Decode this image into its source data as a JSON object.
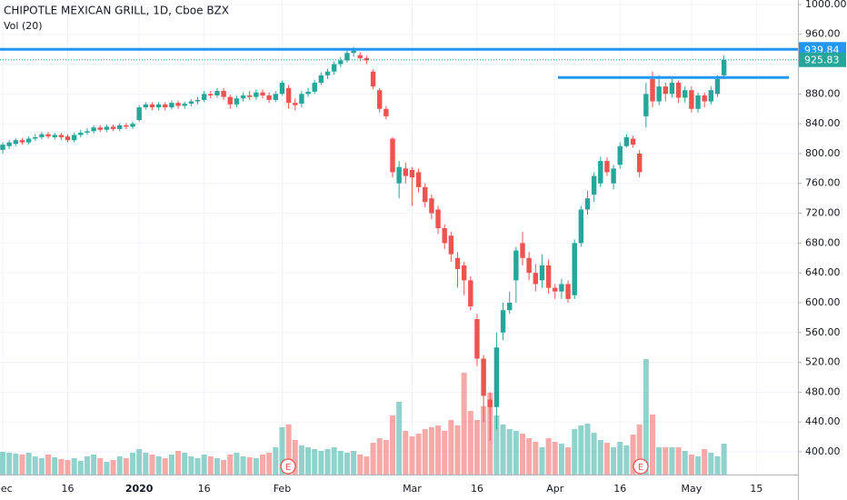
{
  "chart_data": {
    "type": "candlestick",
    "title": "CHIPOTLE MEXICAN GRILL, 1D, Cboe BZX",
    "subtitle": "Vol (20)",
    "categories": [
      "Dec",
      null,
      null,
      null,
      null,
      null,
      null,
      null,
      null,
      null,
      "16",
      null,
      null,
      null,
      null,
      null,
      null,
      null,
      null,
      null,
      null,
      "2020",
      null,
      null,
      null,
      null,
      null,
      null,
      null,
      null,
      null,
      "16",
      null,
      null,
      null,
      null,
      null,
      null,
      null,
      null,
      null,
      null,
      null,
      "Feb",
      null,
      null,
      null,
      null,
      null,
      null,
      null,
      null,
      null,
      null,
      null,
      null,
      null,
      null,
      null,
      null,
      null,
      null,
      null,
      "Mar",
      null,
      null,
      null,
      null,
      null,
      null,
      null,
      null,
      null,
      "16",
      null,
      null,
      null,
      null,
      null,
      null,
      null,
      null,
      null,
      null,
      null,
      "Apr",
      null,
      null,
      null,
      null,
      null,
      null,
      null,
      null,
      null,
      "16",
      null,
      null,
      null,
      null,
      null,
      null,
      null,
      null,
      null,
      null,
      "May",
      null,
      null,
      null,
      null,
      null,
      null,
      null,
      null,
      null,
      "15"
    ],
    "open": [
      805,
      810,
      813,
      818,
      815,
      820,
      822,
      826,
      822,
      825,
      823,
      818,
      825,
      828,
      830,
      835,
      832,
      836,
      833,
      838,
      836,
      845,
      862,
      866,
      862,
      866,
      862,
      868,
      864,
      867,
      870,
      872,
      880,
      878,
      884,
      876,
      866,
      874,
      878,
      876,
      882,
      878,
      872,
      880,
      888,
      868,
      867,
      880,
      883,
      895,
      905,
      910,
      920,
      925,
      935,
      932,
      928,
      910,
      885,
      860,
      820,
      760,
      780,
      778,
      775,
      755,
      740,
      725,
      700,
      690,
      660,
      650,
      630,
      578,
      525,
      470,
      460,
      560,
      590,
      630,
      680,
      660,
      640,
      630,
      650,
      620,
      615,
      625,
      610,
      680,
      725,
      745,
      760,
      790,
      760,
      785,
      810,
      820,
      800,
      850,
      900,
      870,
      890,
      880,
      895,
      875,
      885,
      860,
      878,
      870,
      880,
      905,
      null,
      null,
      null,
      null,
      null
    ],
    "high": [
      815,
      818,
      821,
      821,
      823,
      826,
      829,
      829,
      828,
      828,
      826,
      828,
      832,
      834,
      838,
      838,
      839,
      839,
      841,
      841,
      843,
      865,
      869,
      869,
      869,
      869,
      871,
      871,
      870,
      873,
      876,
      884,
      884,
      888,
      888,
      879,
      878,
      882,
      884,
      886,
      886,
      882,
      884,
      898,
      892,
      874,
      884,
      888,
      899,
      909,
      914,
      924,
      929,
      938,
      943,
      936,
      931,
      913,
      888,
      864,
      822,
      790,
      788,
      782,
      780,
      760,
      745,
      730,
      705,
      695,
      668,
      655,
      635,
      585,
      530,
      480,
      560,
      600,
      615,
      675,
      695,
      668,
      652,
      665,
      658,
      625,
      632,
      630,
      685,
      730,
      750,
      775,
      796,
      795,
      785,
      815,
      826,
      824,
      805,
      895,
      910,
      905,
      895,
      900,
      898,
      890,
      890,
      882,
      882,
      890,
      905,
      932,
      null,
      null,
      null,
      null,
      null
    ],
    "low": [
      800,
      806,
      810,
      812,
      812,
      817,
      819,
      820,
      819,
      818,
      815,
      815,
      822,
      825,
      827,
      829,
      829,
      830,
      830,
      833,
      833,
      843,
      859,
      858,
      858,
      858,
      859,
      860,
      860,
      863,
      866,
      869,
      874,
      875,
      872,
      860,
      862,
      870,
      872,
      872,
      874,
      868,
      869,
      878,
      860,
      858,
      862,
      876,
      880,
      892,
      900,
      906,
      916,
      922,
      930,
      924,
      920,
      886,
      855,
      846,
      768,
      740,
      760,
      730,
      748,
      728,
      712,
      692,
      672,
      655,
      620,
      610,
      590,
      515,
      440,
      415,
      430,
      550,
      585,
      600,
      650,
      630,
      615,
      620,
      612,
      605,
      605,
      600,
      605,
      675,
      718,
      735,
      755,
      770,
      752,
      780,
      808,
      808,
      768,
      835,
      862,
      865,
      870,
      875,
      868,
      868,
      855,
      855,
      862,
      866,
      876,
      900,
      null,
      null,
      null,
      null,
      null
    ],
    "close": [
      812,
      815,
      818,
      815,
      820,
      822,
      826,
      823,
      825,
      822,
      818,
      825,
      828,
      830,
      835,
      832,
      836,
      833,
      838,
      836,
      840,
      862,
      866,
      862,
      866,
      862,
      868,
      864,
      867,
      870,
      872,
      880,
      878,
      884,
      876,
      866,
      874,
      878,
      876,
      882,
      878,
      872,
      880,
      895,
      868,
      865,
      880,
      883,
      895,
      905,
      910,
      920,
      925,
      935,
      938,
      928,
      925,
      890,
      860,
      850,
      775,
      782,
      770,
      768,
      755,
      735,
      720,
      700,
      680,
      665,
      645,
      630,
      595,
      525,
      475,
      460,
      540,
      590,
      600,
      670,
      660,
      640,
      625,
      650,
      620,
      615,
      625,
      605,
      680,
      725,
      740,
      770,
      790,
      775,
      780,
      810,
      822,
      812,
      775,
      880,
      870,
      890,
      880,
      895,
      875,
      885,
      860,
      878,
      870,
      885,
      900,
      925.83,
      null,
      null,
      null,
      null,
      null
    ],
    "volume": [
      25,
      24,
      23,
      22,
      24,
      20,
      18,
      22,
      19,
      17,
      16,
      18,
      15,
      20,
      22,
      18,
      14,
      16,
      20,
      18,
      24,
      28,
      24,
      22,
      20,
      18,
      22,
      26,
      24,
      20,
      18,
      22,
      20,
      18,
      16,
      22,
      24,
      20,
      19,
      18,
      22,
      24,
      30,
      52,
      55,
      38,
      32,
      30,
      28,
      26,
      28,
      30,
      26,
      24,
      26,
      22,
      20,
      35,
      40,
      38,
      65,
      80,
      48,
      42,
      45,
      50,
      52,
      54,
      48,
      60,
      54,
      112,
      70,
      60,
      75,
      90,
      65,
      55,
      50,
      48,
      45,
      40,
      36,
      30,
      40,
      36,
      34,
      30,
      50,
      54,
      56,
      46,
      38,
      35,
      30,
      36,
      32,
      44,
      55,
      127,
      66,
      30,
      30,
      30,
      30,
      26,
      22,
      20,
      28,
      24,
      20,
      34,
      null,
      null,
      null,
      null,
      null
    ],
    "up_color": "#26a69a",
    "down_color": "#ef5350",
    "ylim": [
      369.5,
      1006
    ],
    "yticks": [
      {
        "value": 400,
        "label": "400.00"
      },
      {
        "value": 440,
        "label": "440.00"
      },
      {
        "value": 480,
        "label": "480.00"
      },
      {
        "value": 520,
        "label": "520.00"
      },
      {
        "value": 560,
        "label": "560.00"
      },
      {
        "value": 600,
        "label": "600.00"
      },
      {
        "value": 640,
        "label": "640.00"
      },
      {
        "value": 680,
        "label": "680.00"
      },
      {
        "value": 720,
        "label": "720.00"
      },
      {
        "value": 760,
        "label": "760.00"
      },
      {
        "value": 800,
        "label": "800.00"
      },
      {
        "value": 840,
        "label": "840.00"
      },
      {
        "value": 880,
        "label": "880.00"
      },
      {
        "value": 920,
        "label": "920.00"
      },
      {
        "value": 960,
        "label": "960.00"
      },
      {
        "value": 1000,
        "label": "1000.00"
      }
    ],
    "grid": true,
    "hlines": [
      {
        "value": 939.84,
        "color": "#2196f3"
      },
      {
        "value": 902,
        "color": "#2196f3"
      }
    ],
    "earnings_markers": [
      "E",
      "E"
    ]
  }
}
